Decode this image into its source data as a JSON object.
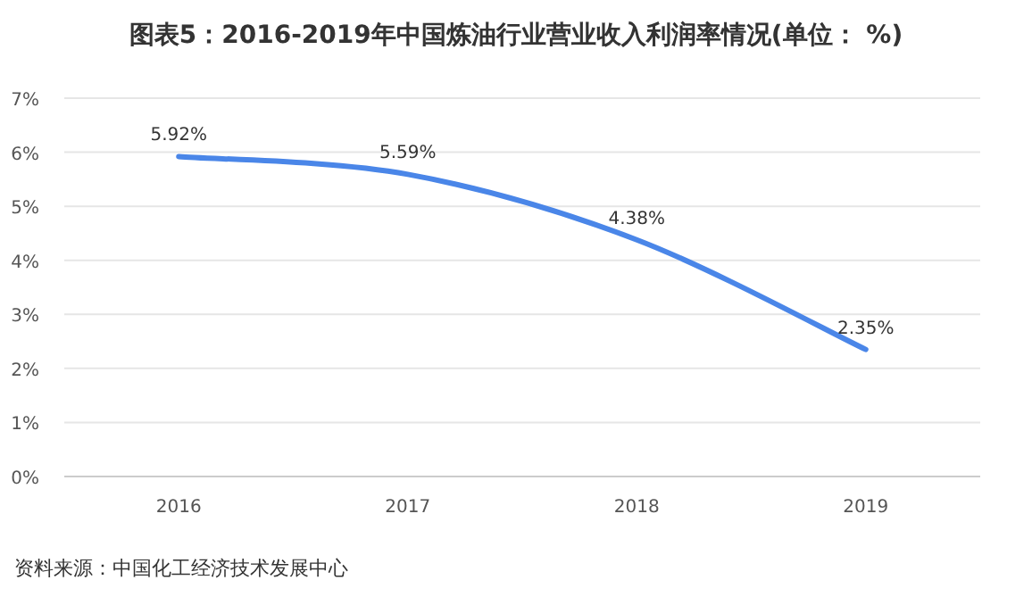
{
  "chart_data": {
    "type": "line",
    "title": "图表5：2016-2019年中国炼油行业营业收入利润率情况(单位： %)",
    "categories": [
      "2016",
      "2017",
      "2018",
      "2019"
    ],
    "series": [
      {
        "color": "#4a86e8",
        "values": [
          5.92,
          5.59,
          4.38,
          2.35
        ],
        "value_labels": [
          "5.92%",
          "5.59%",
          "4.38%",
          "2.35%"
        ]
      }
    ],
    "ylim": [
      0,
      7
    ],
    "yticks": [
      {
        "value": 0,
        "label": "0%"
      },
      {
        "value": 1,
        "label": "1%"
      },
      {
        "value": 2,
        "label": "2%"
      },
      {
        "value": 3,
        "label": "3%"
      },
      {
        "value": 4,
        "label": "4%"
      },
      {
        "value": 5,
        "label": "5%"
      },
      {
        "value": 6,
        "label": "6%"
      },
      {
        "value": 7,
        "label": "7%"
      }
    ],
    "grid": "y",
    "marker": "none",
    "line_style": "solid",
    "annotations": [
      "资料来源：中国化工经济技术发展中心"
    ]
  }
}
